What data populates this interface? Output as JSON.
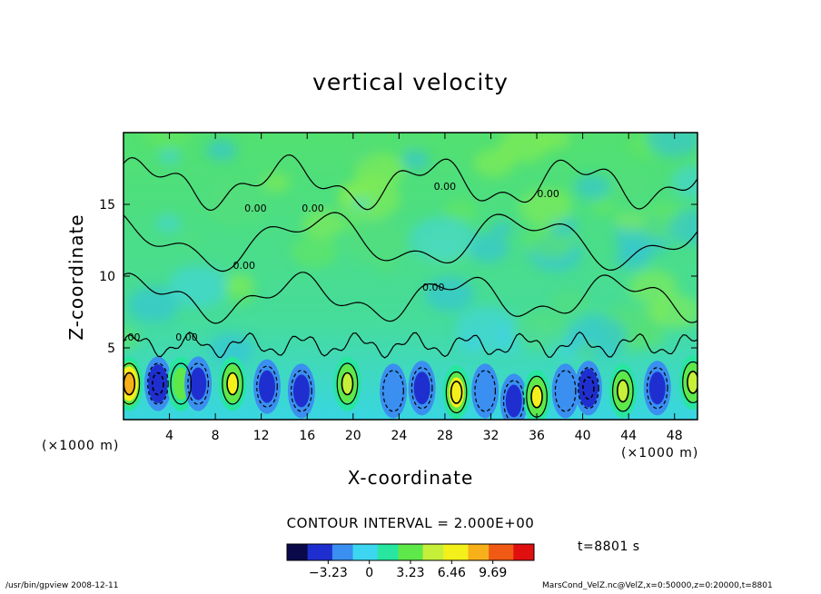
{
  "chart_data": {
    "type": "heatmap",
    "title": "vertical velocity",
    "xlabel": "X-coordinate",
    "ylabel": "Z-coordinate",
    "x_unit_left": "(×1000 m)",
    "x_unit_right": "(×1000 m)",
    "xlim": [
      0,
      50
    ],
    "ylim": [
      0,
      20
    ],
    "x_ticks": [
      4,
      8,
      12,
      16,
      20,
      24,
      28,
      32,
      36,
      40,
      44,
      48
    ],
    "y_ticks": [
      5,
      10,
      15
    ],
    "contour_interval_label": "CONTOUR INTERVAL = 2.000E+00",
    "colorbar": {
      "range": [
        -6.46,
        12.92
      ],
      "tick_values": [
        -3.23,
        0,
        3.23,
        6.46,
        9.69
      ],
      "tick_labels": [
        "−3.23",
        "0",
        "3.23",
        "6.46",
        "9.69"
      ],
      "colors": [
        "#0a0a4a",
        "#1f2fcf",
        "#3a8ff0",
        "#3dd6f0",
        "#28e6a0",
        "#5ee84a",
        "#c6ef3a",
        "#f4f01c",
        "#f7b01a",
        "#f05a14",
        "#e01010"
      ]
    },
    "cells": [
      {
        "x": 0.5,
        "z": 2.5,
        "w": 8.5
      },
      {
        "x": 3.0,
        "z": 2.5,
        "w": -4.5
      },
      {
        "x": 5.0,
        "z": 2.5,
        "w": 2.5
      },
      {
        "x": 6.5,
        "z": 2.5,
        "w": -3.5
      },
      {
        "x": 9.5,
        "z": 2.5,
        "w": 6.0
      },
      {
        "x": 12.5,
        "z": 2.3,
        "w": -3.0
      },
      {
        "x": 15.5,
        "z": 2.0,
        "w": -3.5
      },
      {
        "x": 19.5,
        "z": 2.5,
        "w": 5.5
      },
      {
        "x": 23.5,
        "z": 2.0,
        "w": -2.5
      },
      {
        "x": 26.0,
        "z": 2.2,
        "w": -3.0
      },
      {
        "x": 29.0,
        "z": 1.9,
        "w": 7.0
      },
      {
        "x": 31.5,
        "z": 2.0,
        "w": -2.5
      },
      {
        "x": 34.0,
        "z": 1.3,
        "w": -3.5
      },
      {
        "x": 36.0,
        "z": 1.6,
        "w": 6.0
      },
      {
        "x": 38.5,
        "z": 2.0,
        "w": -2.0
      },
      {
        "x": 40.5,
        "z": 2.2,
        "w": -4.5
      },
      {
        "x": 43.5,
        "z": 2.0,
        "w": 5.5
      },
      {
        "x": 46.5,
        "z": 2.2,
        "w": -4.0
      },
      {
        "x": 49.6,
        "z": 2.6,
        "w": 5.5
      }
    ],
    "contour_labels": [
      {
        "x": 0.5,
        "z": 5.5,
        "text": "0.00"
      },
      {
        "x": 5.5,
        "z": 5.5,
        "text": "0.00"
      },
      {
        "x": 11.5,
        "z": 14.5,
        "text": "0.00"
      },
      {
        "x": 10.5,
        "z": 10.5,
        "text": "0.00"
      },
      {
        "x": 16.5,
        "z": 14.5,
        "text": "0.00"
      },
      {
        "x": 28.0,
        "z": 16.0,
        "text": "0.00"
      },
      {
        "x": 27.0,
        "z": 9.0,
        "text": "0.00"
      },
      {
        "x": 37.0,
        "z": 15.5,
        "text": "0.00"
      }
    ]
  },
  "time_label": "t=8801 s",
  "footer": {
    "left": "/usr/bin/gpview   2008-12-11",
    "right": "MarsCond_VelZ.nc@VelZ,x=0:50000,z=0:20000,t=8801"
  }
}
